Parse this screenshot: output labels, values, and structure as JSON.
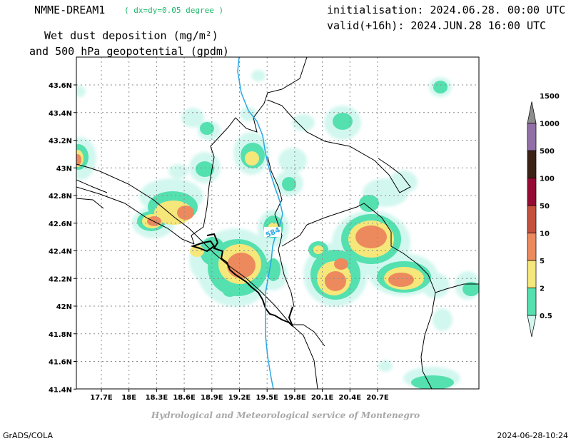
{
  "header": {
    "model_name": "NMME-DREAM1",
    "resolution": "( dx=dy=0.05 degree )",
    "title_line1": "Wet dust deposition (mg/m²)",
    "title_line2": "and 500 hPa geopotential (gpdm)",
    "init_line": "initialisation: 2024.06.28. 00:00 UTC",
    "valid_line": "valid(+16h): 2024.JUN.28 16:00 UTC"
  },
  "map": {
    "lon_ticks": [
      "17.7E",
      "18E",
      "18.3E",
      "18.6E",
      "18.9E",
      "19.2E",
      "19.5E",
      "19.8E",
      "20.1E",
      "20.4E",
      "20.7E"
    ],
    "lat_ticks": [
      "43.6N",
      "43.4N",
      "43.2N",
      "43N",
      "42.8N",
      "42.6N",
      "42.4N",
      "42.2N",
      "42N",
      "41.8N",
      "41.6N",
      "41.4N"
    ],
    "contour_label": "584",
    "contour_color": "#2aa7e4",
    "grid": true
  },
  "colorbar": {
    "levels": [
      "0.5",
      "2",
      "5",
      "10",
      "50",
      "100",
      "500",
      "1000",
      "1500"
    ],
    "colors": [
      "#d2f7ef",
      "#55e0b0",
      "#f5e77a",
      "#ec8a5e",
      "#c4513e",
      "#960b33",
      "#3c2216",
      "#926fa6",
      "#8d8d8d"
    ]
  },
  "footer": {
    "credit": "Hydrological and Meteorological service of Montenegro",
    "left_label": "GrADS/COLA",
    "right_label": "2024-06-28-10:24"
  }
}
